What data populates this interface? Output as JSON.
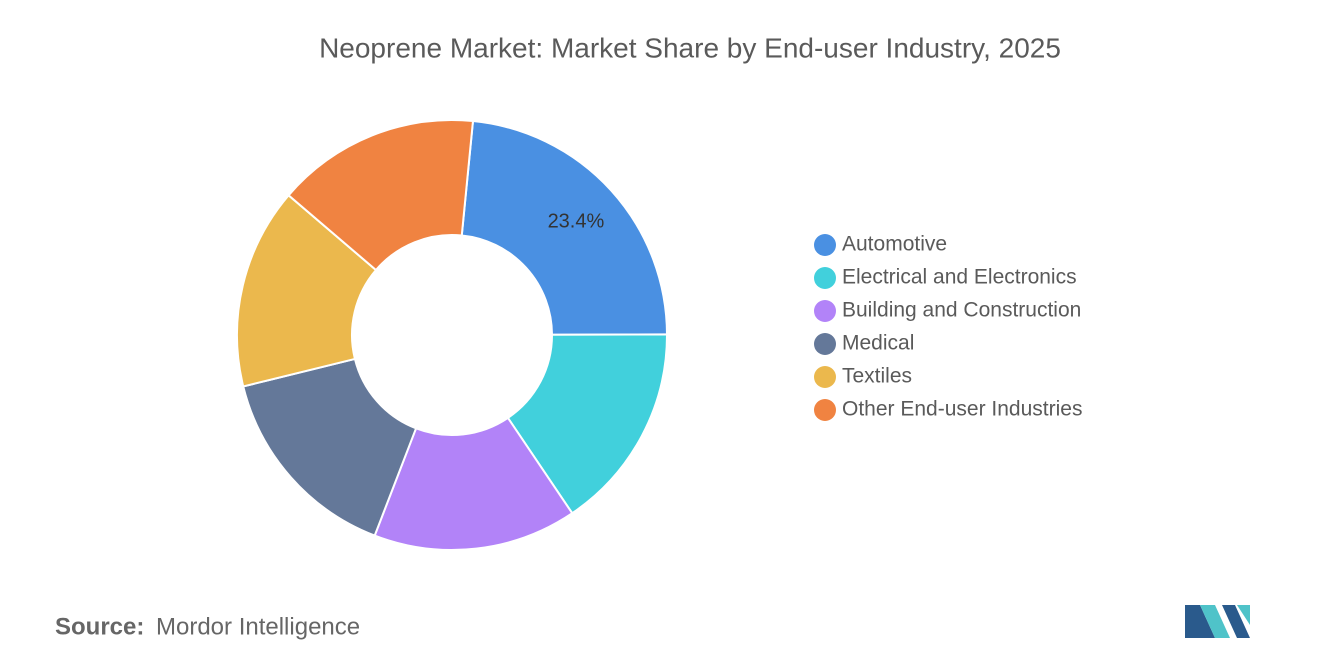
{
  "chart_data": {
    "type": "donut",
    "title": "Neoprene Market: Market Share by End-user Industry, 2025",
    "categories": [
      "Automotive",
      "Electrical and Electronics",
      "Building and Construction",
      "Medical",
      "Textiles",
      "Other End-user Industries"
    ],
    "values": [
      23.4,
      15.6,
      15.3,
      15.3,
      15.1,
      15.3
    ],
    "value_labels": [
      "23.4%",
      null,
      null,
      null,
      null,
      null
    ],
    "colors": [
      "#4a90e2",
      "#41d0dc",
      "#b283f8",
      "#647899",
      "#ebb84d",
      "#f08341"
    ],
    "legend": "right"
  },
  "source": {
    "label": "Source:",
    "text": "Mordor Intelligence"
  }
}
